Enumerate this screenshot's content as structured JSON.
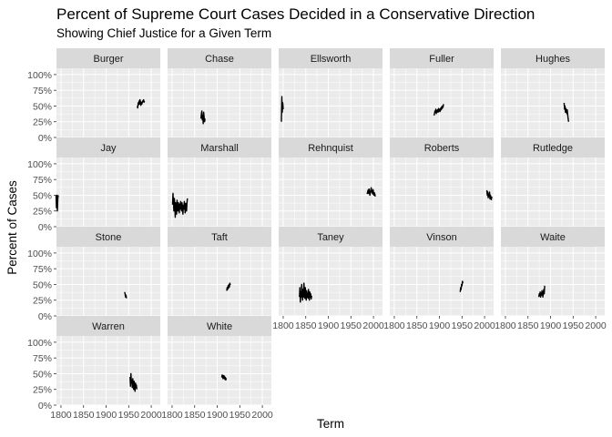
{
  "chart_data": {
    "type": "line",
    "title": "Percent of Supreme Court Cases Decided in a Conservative Direction",
    "subtitle": "Showing Chief Justice for a Given Term",
    "xlabel": "Term",
    "ylabel": "Percent of Cases",
    "xlim": [
      1790,
      2020
    ],
    "ylim": [
      0,
      1.1
    ],
    "x_ticks": [
      1800,
      1850,
      1900,
      1950,
      2000
    ],
    "x_tick_labels": [
      "1800",
      "1850",
      "1900",
      "1950",
      "2000"
    ],
    "y_ticks": [
      0,
      0.25,
      0.5,
      0.75,
      1.0
    ],
    "y_tick_labels": [
      "0%",
      "25%",
      "50%",
      "75%",
      "100%"
    ],
    "grid": true,
    "layout": "facet_wrap",
    "ncol": 5,
    "line_color": "#000000",
    "panel_background": "#ebebeb",
    "strip_background": "#d9d9d9",
    "grid_color": "#ffffff",
    "panels": [
      {
        "label": "Burger",
        "x": [
          1969,
          1970,
          1971,
          1972,
          1973,
          1974,
          1975,
          1976,
          1977,
          1978,
          1979,
          1980,
          1981,
          1982,
          1983,
          1984,
          1985
        ],
        "y": [
          0.5,
          0.47,
          0.55,
          0.52,
          0.58,
          0.53,
          0.6,
          0.57,
          0.51,
          0.56,
          0.53,
          0.55,
          0.58,
          0.57,
          0.6,
          0.56,
          0.58
        ]
      },
      {
        "label": "Chase",
        "x": [
          1864,
          1865,
          1866,
          1867,
          1868,
          1869,
          1870,
          1871,
          1872,
          1873
        ],
        "y": [
          0.3,
          0.38,
          0.42,
          0.28,
          0.35,
          0.22,
          0.4,
          0.32,
          0.25,
          0.3
        ]
      },
      {
        "label": "Ellsworth",
        "x": [
          1796,
          1797,
          1798,
          1799,
          1800
        ],
        "y": [
          0.25,
          0.65,
          0.4,
          0.55,
          0.45
        ]
      },
      {
        "label": "Fuller",
        "x": [
          1888,
          1889,
          1890,
          1891,
          1892,
          1893,
          1894,
          1895,
          1896,
          1897,
          1898,
          1899,
          1900,
          1901,
          1902,
          1903,
          1904,
          1905,
          1906,
          1907,
          1908,
          1909
        ],
        "y": [
          0.35,
          0.38,
          0.42,
          0.4,
          0.45,
          0.38,
          0.43,
          0.41,
          0.44,
          0.4,
          0.46,
          0.42,
          0.45,
          0.41,
          0.43,
          0.47,
          0.44,
          0.49,
          0.46,
          0.5,
          0.48,
          0.53
        ]
      },
      {
        "label": "Hughes",
        "x": [
          1930,
          1931,
          1932,
          1933,
          1934,
          1935,
          1936,
          1937,
          1938,
          1939,
          1940
        ],
        "y": [
          0.55,
          0.45,
          0.5,
          0.4,
          0.46,
          0.42,
          0.38,
          0.44,
          0.36,
          0.3,
          0.25
        ]
      },
      {
        "label": "Jay",
        "x": [
          1789,
          1790,
          1791,
          1792,
          1793,
          1794
        ],
        "y": [
          0.5,
          0.3,
          0.5,
          0.25,
          0.45,
          0.5
        ]
      },
      {
        "label": "Marshall",
        "x": [
          1801,
          1802,
          1803,
          1804,
          1805,
          1806,
          1807,
          1808,
          1809,
          1810,
          1811,
          1812,
          1813,
          1814,
          1815,
          1816,
          1817,
          1818,
          1819,
          1820,
          1821,
          1822,
          1823,
          1824,
          1825,
          1826,
          1827,
          1828,
          1829,
          1830,
          1831,
          1832,
          1833,
          1834
        ],
        "y": [
          0.35,
          0.53,
          0.4,
          0.25,
          0.45,
          0.35,
          0.15,
          0.38,
          0.3,
          0.2,
          0.42,
          0.33,
          0.25,
          0.38,
          0.3,
          0.22,
          0.36,
          0.28,
          0.4,
          0.33,
          0.25,
          0.38,
          0.3,
          0.2,
          0.34,
          0.28,
          0.4,
          0.32,
          0.22,
          0.37,
          0.3,
          0.25,
          0.38,
          0.45
        ]
      },
      {
        "label": "Rehnquist",
        "x": [
          1986,
          1987,
          1988,
          1989,
          1990,
          1991,
          1992,
          1993,
          1994,
          1995,
          1996,
          1997,
          1998,
          1999,
          2000,
          2001,
          2002,
          2003,
          2004
        ],
        "y": [
          0.52,
          0.55,
          0.58,
          0.53,
          0.6,
          0.56,
          0.5,
          0.54,
          0.58,
          0.62,
          0.55,
          0.57,
          0.52,
          0.59,
          0.55,
          0.5,
          0.54,
          0.52,
          0.48
        ]
      },
      {
        "label": "Roberts",
        "x": [
          2005,
          2006,
          2007,
          2008,
          2009,
          2010,
          2011,
          2012,
          2013,
          2014,
          2015,
          2016
        ],
        "y": [
          0.58,
          0.5,
          0.55,
          0.46,
          0.52,
          0.48,
          0.55,
          0.44,
          0.5,
          0.46,
          0.43,
          0.48
        ]
      },
      {
        "label": "Rutledge",
        "x": [],
        "y": []
      },
      {
        "label": "Stone",
        "x": [
          1941,
          1942,
          1943,
          1944,
          1945
        ],
        "y": [
          0.38,
          0.35,
          0.3,
          0.33,
          0.28
        ]
      },
      {
        "label": "Taft",
        "x": [
          1921,
          1922,
          1923,
          1924,
          1925,
          1926,
          1927,
          1928,
          1929
        ],
        "y": [
          0.4,
          0.45,
          0.42,
          0.48,
          0.44,
          0.5,
          0.46,
          0.52,
          0.49
        ]
      },
      {
        "label": "Taney",
        "x": [
          1836,
          1837,
          1838,
          1839,
          1840,
          1841,
          1842,
          1843,
          1844,
          1845,
          1846,
          1847,
          1848,
          1849,
          1850,
          1851,
          1852,
          1853,
          1854,
          1855,
          1856,
          1857,
          1858,
          1859,
          1860,
          1861,
          1862,
          1863
        ],
        "y": [
          0.3,
          0.45,
          0.22,
          0.38,
          0.3,
          0.5,
          0.35,
          0.25,
          0.42,
          0.3,
          0.52,
          0.38,
          0.28,
          0.45,
          0.33,
          0.25,
          0.4,
          0.3,
          0.36,
          0.28,
          0.42,
          0.33,
          0.25,
          0.38,
          0.3,
          0.35,
          0.27,
          0.32
        ]
      },
      {
        "label": "Vinson",
        "x": [
          1946,
          1947,
          1948,
          1949,
          1950,
          1951,
          1952
        ],
        "y": [
          0.38,
          0.45,
          0.42,
          0.5,
          0.48,
          0.55,
          0.52
        ]
      },
      {
        "label": "Waite",
        "x": [
          1874,
          1875,
          1876,
          1877,
          1878,
          1879,
          1880,
          1881,
          1882,
          1883,
          1884,
          1885,
          1886,
          1887
        ],
        "y": [
          0.3,
          0.35,
          0.32,
          0.38,
          0.3,
          0.36,
          0.33,
          0.4,
          0.35,
          0.3,
          0.38,
          0.42,
          0.35,
          0.48
        ]
      },
      {
        "label": "Warren",
        "x": [
          1953,
          1954,
          1955,
          1956,
          1957,
          1958,
          1959,
          1960,
          1961,
          1962,
          1963,
          1964,
          1965,
          1966,
          1967,
          1968
        ],
        "y": [
          0.45,
          0.3,
          0.5,
          0.35,
          0.4,
          0.28,
          0.42,
          0.33,
          0.25,
          0.38,
          0.3,
          0.22,
          0.35,
          0.28,
          0.32,
          0.25
        ]
      },
      {
        "label": "White",
        "x": [
          1910,
          1911,
          1912,
          1913,
          1914,
          1915,
          1916,
          1917,
          1918,
          1919,
          1920
        ],
        "y": [
          0.44,
          0.48,
          0.45,
          0.42,
          0.47,
          0.43,
          0.46,
          0.41,
          0.44,
          0.4,
          0.43
        ]
      }
    ]
  }
}
